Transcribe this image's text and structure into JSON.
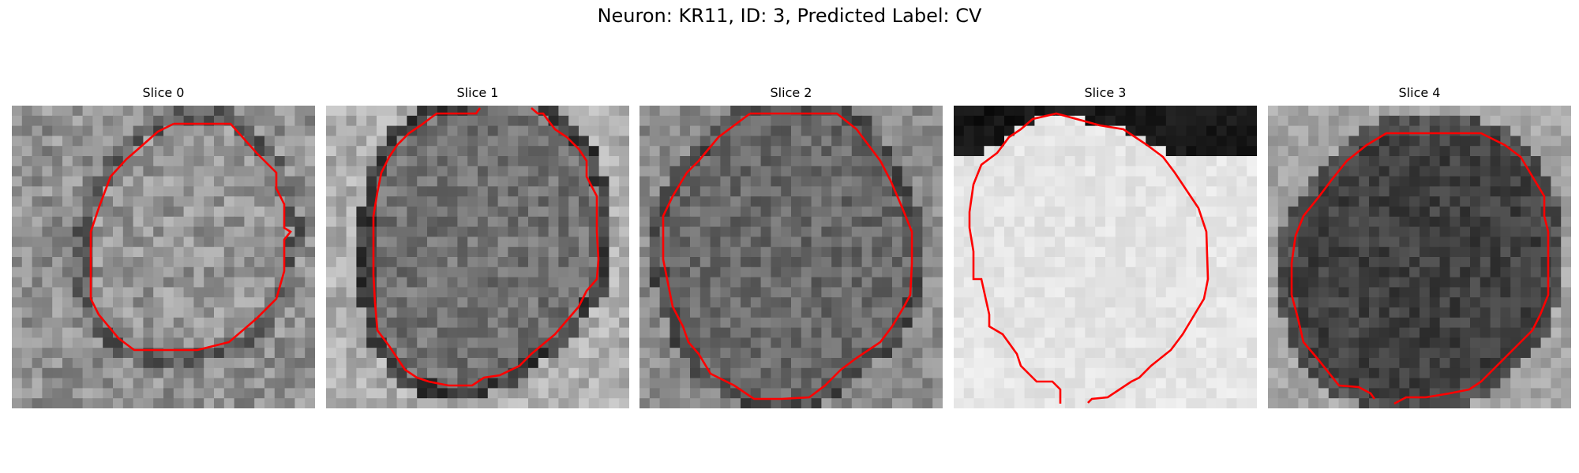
{
  "figure": {
    "title": "Neuron: KR11, ID: 3, Predicted Label: CV"
  },
  "contour_color": "#ff0000",
  "panels": [
    {
      "title": "Slice 0"
    },
    {
      "title": "Slice 1"
    },
    {
      "title": "Slice 2"
    },
    {
      "title": "Slice 3"
    },
    {
      "title": "Slice 4"
    }
  ]
}
